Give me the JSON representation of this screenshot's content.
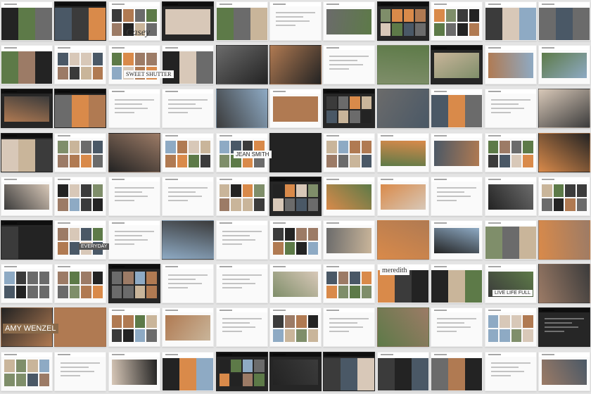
{
  "tile_texts": [
    {
      "key": "casey",
      "text": "Casey",
      "style": "script-dark"
    },
    {
      "key": "jean_smith",
      "text": "JEAN SMITH",
      "style": "caps-dark"
    },
    {
      "key": "everyday",
      "text": "EVERYDAY",
      "style": "caps-light"
    },
    {
      "key": "amy_wenzel",
      "text": "AMY WENZEL",
      "style": "caps-overlay"
    },
    {
      "key": "meredith",
      "text": "meredith",
      "style": "serif-dark"
    },
    {
      "key": "live_life_full",
      "text": "LIVE LIFE FULL",
      "style": "caps-dark"
    },
    {
      "key": "sweet_shutter",
      "text": "SWEET SHUTTER",
      "style": "caps-dark"
    }
  ],
  "palette": {
    "photo_warm": "#b07a52",
    "photo_dark": "#232323",
    "photo_green": "#5d7a48",
    "photo_sky": "#8eaac4",
    "photo_sunset": "#d98a4a",
    "page_white": "#fafafa",
    "page_bg": "#e4e4e4"
  }
}
